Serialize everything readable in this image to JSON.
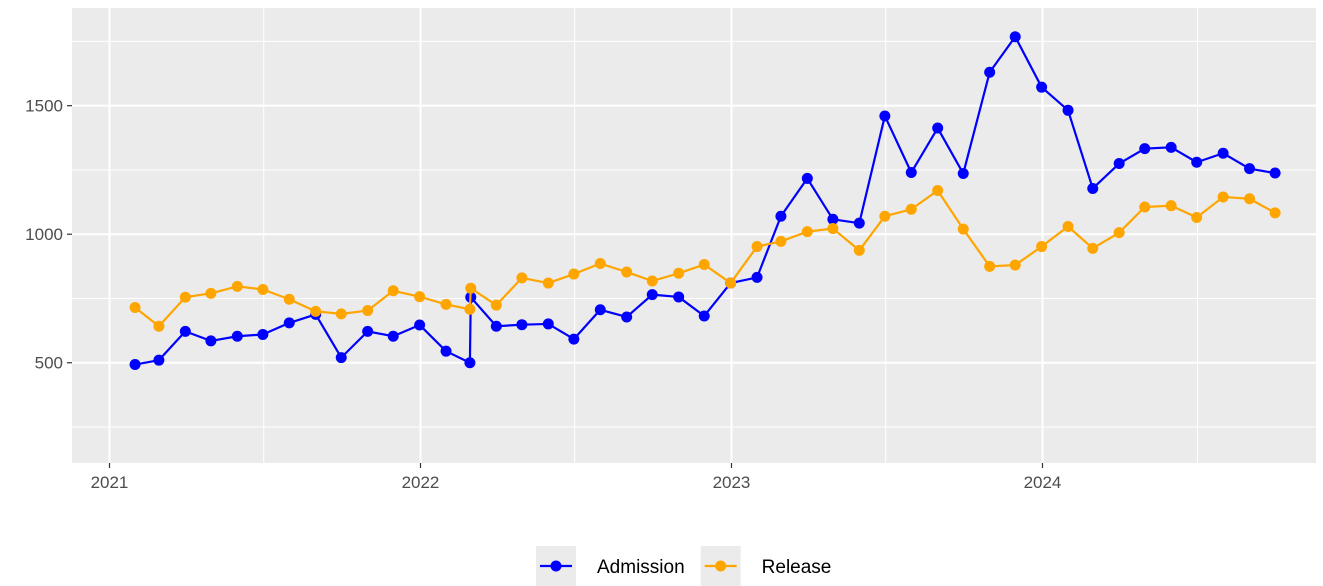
{
  "chart_data": {
    "type": "line",
    "title": "",
    "xlabel": "",
    "ylabel": "",
    "x_axis": {
      "type": "date",
      "range": [
        "2020-11-18",
        "2024-11-17"
      ],
      "ticks": [
        {
          "date": "2021-01-01",
          "label": "2021"
        },
        {
          "date": "2022-01-01",
          "label": "2022"
        },
        {
          "date": "2023-01-01",
          "label": "2023"
        },
        {
          "date": "2024-01-01",
          "label": "2024"
        }
      ],
      "minor_ticks": [
        "2021-07-01",
        "2022-07-01",
        "2023-07-01",
        "2024-07-01"
      ]
    },
    "y_axis": {
      "range": [
        110,
        1880
      ],
      "ticks": [
        500,
        1000,
        1500
      ],
      "minor_ticks": [
        250,
        750,
        1250,
        1750
      ]
    },
    "grid": true,
    "legend_position": "bottom",
    "x": [
      "2021-01-31",
      "2021-02-28",
      "2021-03-31",
      "2021-04-30",
      "2021-05-31",
      "2021-06-30",
      "2021-07-31",
      "2021-08-31",
      "2021-09-30",
      "2021-10-31",
      "2021-11-30",
      "2021-12-31",
      "2022-01-31",
      "2022-02-28",
      "2022-03-01",
      "2022-03-31",
      "2022-04-30",
      "2022-05-31",
      "2022-06-30",
      "2022-07-31",
      "2022-08-31",
      "2022-09-30",
      "2022-10-31",
      "2022-11-30",
      "2022-12-31",
      "2023-01-31",
      "2023-02-28",
      "2023-03-31",
      "2023-04-30",
      "2023-05-31",
      "2023-06-30",
      "2023-07-31",
      "2023-08-31",
      "2023-09-30",
      "2023-10-31",
      "2023-11-30",
      "2023-12-31",
      "2024-01-31",
      "2024-02-29",
      "2024-03-31",
      "2024-04-30",
      "2024-05-31",
      "2024-06-30",
      "2024-07-31",
      "2024-08-31",
      "2024-09-30"
    ],
    "series": [
      {
        "name": "Admission",
        "color": "#0000ff",
        "values": [
          493,
          510,
          622,
          585,
          603,
          610,
          655,
          688,
          520,
          622,
          603,
          647,
          545,
          500,
          755,
          642,
          648,
          651,
          592,
          706,
          678,
          765,
          756,
          682,
          810,
          832,
          1070,
          1217,
          1058,
          1043,
          1460,
          1240,
          1413,
          1236,
          1630,
          1768,
          1572,
          1482,
          1178,
          1275,
          1333,
          1338,
          1280,
          1315,
          1255,
          1238
        ]
      },
      {
        "name": "Release",
        "color": "#ffa500",
        "values": [
          715,
          642,
          755,
          770,
          797,
          785,
          747,
          700,
          690,
          703,
          780,
          757,
          727,
          708,
          790,
          724,
          830,
          810,
          845,
          886,
          853,
          818,
          848,
          882,
          810,
          952,
          972,
          1010,
          1022,
          937,
          1070,
          1097,
          1170,
          1020,
          875,
          880,
          952,
          1030,
          945,
          1006,
          1106,
          1111,
          1065,
          1145,
          1138,
          1083
        ]
      }
    ]
  }
}
